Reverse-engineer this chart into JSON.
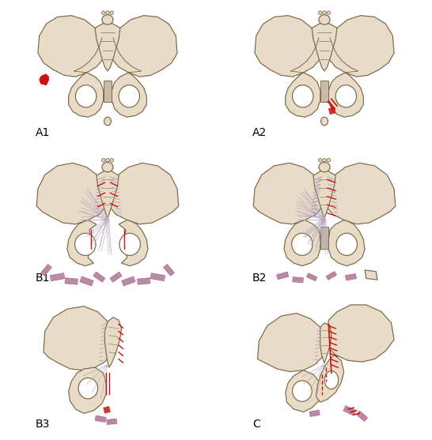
{
  "background_color": "#ffffff",
  "bone_fill": "#e8dcc8",
  "bone_edge": "#7a6845",
  "bone_edge_dark": "#5a4a30",
  "red_fracture": "#cc1111",
  "ligament_fill": "#b0a0b8",
  "ligament_edge": "#c06080",
  "sacrum_lines": "#9a8060",
  "labels": [
    "A1",
    "A2",
    "B1",
    "B2",
    "B3",
    "C"
  ],
  "label_fontsize": 10,
  "figsize": [
    5.46,
    5.57
  ],
  "dpi": 100
}
